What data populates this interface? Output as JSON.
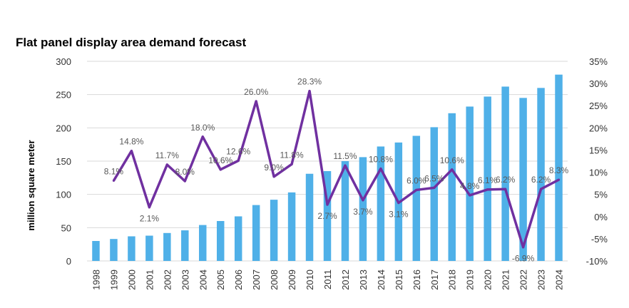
{
  "chart_data": {
    "type": "bar",
    "title": "Flat panel display area demand forecast",
    "ylabel": "million square meter",
    "ylim": [
      0,
      300
    ],
    "yticks": [
      "0",
      "50",
      "100",
      "150",
      "200",
      "250",
      "300"
    ],
    "y2lim": [
      -10,
      35
    ],
    "y2ticks": [
      "-10%",
      "-5%",
      "0%",
      "5%",
      "10%",
      "15%",
      "20%",
      "25%",
      "30%",
      "35%"
    ],
    "grid": true,
    "categories": [
      "1998",
      "1999",
      "2000",
      "2001",
      "2002",
      "2003",
      "2004",
      "2005",
      "2006",
      "2007",
      "2008",
      "2009",
      "2010",
      "2011",
      "2012",
      "2013",
      "2014",
      "2015",
      "2016",
      "2017",
      "2018",
      "2019",
      "2020",
      "2021",
      "2022",
      "2023",
      "2024"
    ],
    "series": [
      {
        "type": "bar",
        "axis": "left",
        "color": "#4FB0E8",
        "values": [
          30,
          33,
          37,
          38,
          42,
          46,
          54,
          60,
          67,
          84,
          92,
          103,
          131,
          135,
          150,
          156,
          172,
          178,
          188,
          201,
          222,
          232,
          247,
          262,
          245,
          260,
          280
        ]
      },
      {
        "type": "line",
        "axis": "right",
        "color": "#7030A0",
        "values": [
          null,
          8.1,
          14.8,
          2.1,
          11.7,
          8.0,
          18.0,
          10.6,
          12.6,
          26.0,
          9.0,
          11.8,
          28.3,
          2.7,
          11.5,
          3.7,
          10.8,
          3.1,
          6.0,
          6.5,
          10.6,
          4.8,
          6.1,
          6.2,
          -6.9,
          6.2,
          8.3
        ],
        "labels": [
          "",
          "8.1%",
          "14.8%",
          "2.1%",
          "11.7%",
          "8.0%",
          "18.0%",
          "10.6%",
          "12.6%",
          "26.0%",
          "9.0%",
          "11.8%",
          "28.3%",
          "2.7%",
          "11.5%",
          "3.7%",
          "10.8%",
          "3.1%",
          "6.0%",
          "6.5%",
          "10.6%",
          "4.8%",
          "6.1%",
          "6.2%",
          "-6.9%",
          "6.2%",
          "8.3%"
        ]
      }
    ]
  }
}
